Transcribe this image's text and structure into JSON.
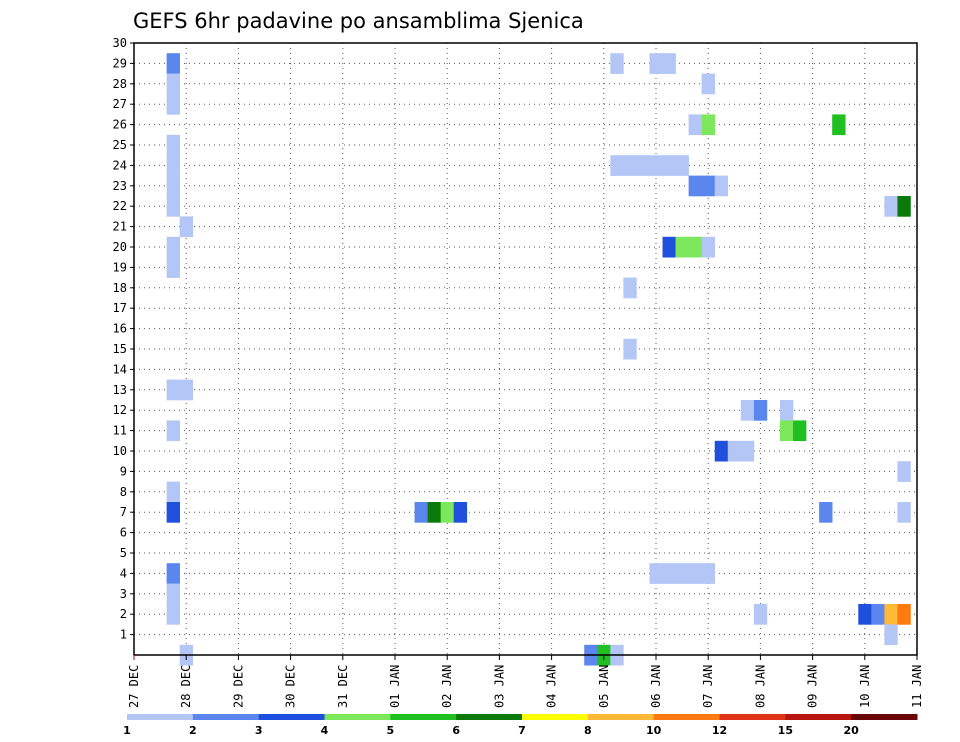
{
  "chart_data": {
    "type": "heatmap",
    "title": "GEFS 6hr padavine po ansamblima Sjenica",
    "xlabel": "",
    "ylabel": "",
    "x_unit": "6-hour step from 27 DEC 00Z",
    "xlim": [
      0,
      60
    ],
    "ylim": [
      0,
      30
    ],
    "y_ticks": [
      1,
      2,
      3,
      4,
      5,
      6,
      7,
      8,
      9,
      10,
      11,
      12,
      13,
      14,
      15,
      16,
      17,
      18,
      19,
      20,
      21,
      22,
      23,
      24,
      25,
      26,
      27,
      28,
      29,
      30
    ],
    "x_ticks": [
      {
        "step": 0,
        "label": "27 DEC"
      },
      {
        "step": 4,
        "label": "28 DEC"
      },
      {
        "step": 8,
        "label": "29 DEC"
      },
      {
        "step": 12,
        "label": "30 DEC"
      },
      {
        "step": 16,
        "label": "31 DEC"
      },
      {
        "step": 20,
        "label": "01 JAN"
      },
      {
        "step": 24,
        "label": "02 JAN"
      },
      {
        "step": 28,
        "label": "03 JAN"
      },
      {
        "step": 32,
        "label": "04 JAN"
      },
      {
        "step": 36,
        "label": "05 JAN"
      },
      {
        "step": 40,
        "label": "06 JAN"
      },
      {
        "step": 44,
        "label": "07 JAN"
      },
      {
        "step": 48,
        "label": "08 JAN"
      },
      {
        "step": 52,
        "label": "09 JAN"
      },
      {
        "step": 56,
        "label": "10 JAN"
      },
      {
        "step": 60,
        "label": "11 JAN"
      }
    ],
    "grid": true,
    "colorbar": {
      "labels": [
        "1",
        "2",
        "3",
        "4",
        "5",
        "6",
        "7",
        "8",
        "10",
        "12",
        "15",
        "20"
      ],
      "colors": [
        "#b3c6f5",
        "#5b86ee",
        "#1f4fdd",
        "#7de85c",
        "#20c020",
        "#0b7a0b",
        "#ffff00",
        "#ffb838",
        "#ff7a10",
        "#e03318",
        "#b81410",
        "#6a0808"
      ]
    },
    "cells": [
      {
        "x": 3,
        "y": 29,
        "level": 2
      },
      {
        "x": 3,
        "y": 28,
        "level": 1
      },
      {
        "x": 3,
        "y": 27,
        "level": 1
      },
      {
        "x": 3,
        "y": 25,
        "level": 1
      },
      {
        "x": 3,
        "y": 24,
        "level": 1
      },
      {
        "x": 3,
        "y": 23,
        "level": 1
      },
      {
        "x": 3,
        "y": 22,
        "level": 1
      },
      {
        "x": 4,
        "y": 21,
        "level": 1
      },
      {
        "x": 3,
        "y": 20,
        "level": 1
      },
      {
        "x": 3,
        "y": 19,
        "level": 1
      },
      {
        "x": 3,
        "y": 13,
        "level": 1
      },
      {
        "x": 4,
        "y": 13,
        "level": 1
      },
      {
        "x": 3,
        "y": 11,
        "level": 1
      },
      {
        "x": 3,
        "y": 8,
        "level": 1
      },
      {
        "x": 3,
        "y": 7,
        "level": 3
      },
      {
        "x": 3,
        "y": 4,
        "level": 2
      },
      {
        "x": 3,
        "y": 3,
        "level": 1
      },
      {
        "x": 3,
        "y": 2,
        "level": 1
      },
      {
        "x": 4,
        "y": 0,
        "level": 1
      },
      {
        "x": 22,
        "y": 7,
        "level": 2
      },
      {
        "x": 23,
        "y": 7,
        "level": 6
      },
      {
        "x": 24,
        "y": 7,
        "level": 4
      },
      {
        "x": 25,
        "y": 7,
        "level": 3
      },
      {
        "x": 35,
        "y": 0,
        "level": 2
      },
      {
        "x": 36,
        "y": 0,
        "level": 5
      },
      {
        "x": 37,
        "y": 0,
        "level": 1
      },
      {
        "x": 37,
        "y": 29,
        "level": 1
      },
      {
        "x": 40,
        "y": 29,
        "level": 1
      },
      {
        "x": 41,
        "y": 29,
        "level": 1
      },
      {
        "x": 37,
        "y": 24,
        "level": 1
      },
      {
        "x": 38,
        "y": 24,
        "level": 1
      },
      {
        "x": 39,
        "y": 24,
        "level": 1
      },
      {
        "x": 40,
        "y": 24,
        "level": 1
      },
      {
        "x": 41,
        "y": 24,
        "level": 1
      },
      {
        "x": 42,
        "y": 24,
        "level": 1
      },
      {
        "x": 38,
        "y": 18,
        "level": 1
      },
      {
        "x": 38,
        "y": 15,
        "level": 1
      },
      {
        "x": 40,
        "y": 4,
        "level": 1
      },
      {
        "x": 41,
        "y": 4,
        "level": 1
      },
      {
        "x": 42,
        "y": 4,
        "level": 1
      },
      {
        "x": 43,
        "y": 4,
        "level": 1
      },
      {
        "x": 44,
        "y": 4,
        "level": 1
      },
      {
        "x": 41,
        "y": 20,
        "level": 3
      },
      {
        "x": 42,
        "y": 20,
        "level": 4
      },
      {
        "x": 43,
        "y": 20,
        "level": 4
      },
      {
        "x": 44,
        "y": 20,
        "level": 1
      },
      {
        "x": 43,
        "y": 23,
        "level": 2
      },
      {
        "x": 44,
        "y": 23,
        "level": 2
      },
      {
        "x": 45,
        "y": 23,
        "level": 1
      },
      {
        "x": 44,
        "y": 28,
        "level": 1
      },
      {
        "x": 43,
        "y": 26,
        "level": 1
      },
      {
        "x": 44,
        "y": 26,
        "level": 4
      },
      {
        "x": 45,
        "y": 10,
        "level": 3
      },
      {
        "x": 46,
        "y": 10,
        "level": 1
      },
      {
        "x": 47,
        "y": 10,
        "level": 1
      },
      {
        "x": 47,
        "y": 12,
        "level": 1
      },
      {
        "x": 48,
        "y": 12,
        "level": 2
      },
      {
        "x": 50,
        "y": 12,
        "level": 1
      },
      {
        "x": 48,
        "y": 2,
        "level": 1
      },
      {
        "x": 50,
        "y": 11,
        "level": 4
      },
      {
        "x": 51,
        "y": 11,
        "level": 5
      },
      {
        "x": 53,
        "y": 7,
        "level": 2
      },
      {
        "x": 54,
        "y": 26,
        "level": 5
      },
      {
        "x": 56,
        "y": 2,
        "level": 3
      },
      {
        "x": 57,
        "y": 2,
        "level": 2
      },
      {
        "x": 58,
        "y": 2,
        "level": 8
      },
      {
        "x": 59,
        "y": 2,
        "level": 9
      },
      {
        "x": 58,
        "y": 1,
        "level": 1
      },
      {
        "x": 58,
        "y": 22,
        "level": 1
      },
      {
        "x": 59,
        "y": 22,
        "level": 6
      },
      {
        "x": 59,
        "y": 9,
        "level": 1
      },
      {
        "x": 59,
        "y": 7,
        "level": 1
      }
    ]
  }
}
